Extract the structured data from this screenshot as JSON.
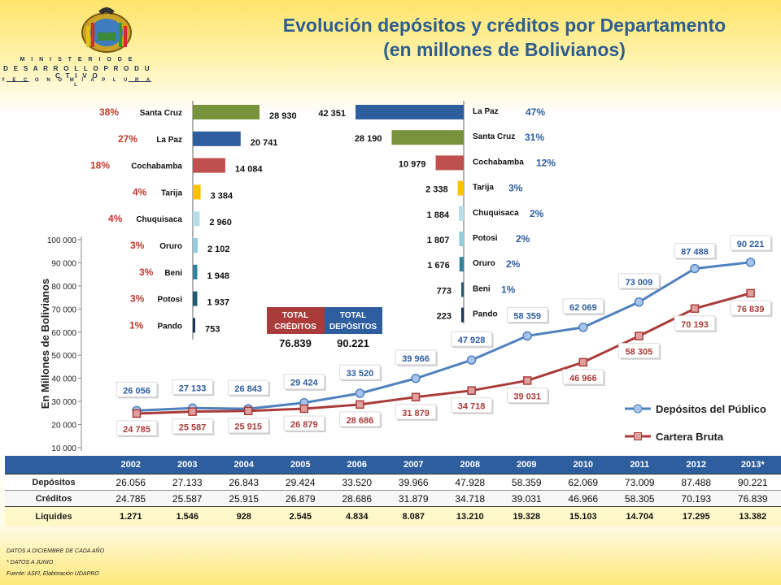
{
  "page": {
    "title_line1": "Evolución depósitos y créditos por Departamento",
    "title_line2": "(en millones de Bolivianos)",
    "ministry_line1": "M I N I S T E R I O  D E",
    "ministry_line2": "D E S A R R O L L O   P R O D U C T I V O",
    "ministry_line3": "Y  E C O N O M Í A  P L U R A L",
    "notes": [
      "DATOS A DICIEMBRE DE CADA AÑO",
      "* DATOS A JUNIO",
      "Fuente: ASFI, Elaboración UDAPRO"
    ]
  },
  "chart_data": [
    {
      "type": "line",
      "ylabel": "En Millones de Bolivianos",
      "ylim": [
        10000,
        100000
      ],
      "y_ticks": [
        "10 000",
        "20 000",
        "30 000",
        "40 000",
        "50 000",
        "60 000",
        "70 000",
        "80 000",
        "90 000",
        "100 000"
      ],
      "x": [
        "2002",
        "2003",
        "2004",
        "2005",
        "2006",
        "2007",
        "2008",
        "2009",
        "2010",
        "2011",
        "2012",
        "2013*"
      ],
      "series": [
        {
          "name": "Depósitos del Público",
          "color": "#4f81bd",
          "values": [
            26056,
            27133,
            26843,
            29424,
            33520,
            39966,
            47928,
            58359,
            62069,
            73009,
            87488,
            90221
          ],
          "labels": [
            "26 056",
            "27 133",
            "26 843",
            "29 424",
            "33 520",
            "39 966",
            "47 928",
            "58 359",
            "62 069",
            "73 009",
            "87 488",
            "90 221"
          ]
        },
        {
          "name": "Cartera Bruta",
          "color": "#a93c3a",
          "values": [
            24785,
            25587,
            25915,
            26879,
            28686,
            31879,
            34718,
            39031,
            46966,
            58305,
            70193,
            76839
          ],
          "labels": [
            "24 785",
            "25 587",
            "25 915",
            "26 879",
            "28 686",
            "31 879",
            "34 718",
            "39 031",
            "46 966",
            "58 305",
            "70 193",
            "76 839"
          ]
        }
      ],
      "grid": false,
      "legend": "bottom-right"
    },
    {
      "type": "bar",
      "orientation": "horizontal",
      "subject": "créditos",
      "categories": [
        "Santa Cruz",
        "La Paz",
        "Cochabamba",
        "Tarija",
        "Chuquisaca",
        "Oruro",
        "Beni",
        "Potosi",
        "Pando"
      ],
      "values": [
        28930,
        20741,
        14084,
        3384,
        2960,
        2102,
        1948,
        1937,
        753
      ],
      "labels": [
        "28 930",
        "20 741",
        "14 084",
        "3 384",
        "2 960",
        "2 102",
        "1 948",
        "1 937",
        "753"
      ],
      "percents": [
        "38%",
        "27%",
        "18%",
        "4%",
        "4%",
        "3%",
        "3%",
        "3%",
        "1%"
      ],
      "colors": [
        "#77933c",
        "#2e5e9e",
        "#c0504d",
        "#ffc000",
        "#b7dee8",
        "#93cddd",
        "#31849b",
        "#1f5a6e",
        "#17375e"
      ]
    },
    {
      "type": "bar",
      "orientation": "horizontal",
      "subject": "depósitos",
      "categories": [
        "La Paz",
        "Santa Cruz",
        "Cochabamba",
        "Tarija",
        "Chuquisaca",
        "Potosi",
        "Oruro",
        "Beni",
        "Pando"
      ],
      "values": [
        42351,
        28190,
        10979,
        2338,
        1884,
        1807,
        1676,
        773,
        223
      ],
      "labels": [
        "42 351",
        "28 190",
        "10 979",
        "2 338",
        "1 884",
        "1 807",
        "1 676",
        "773",
        "223"
      ],
      "percents": [
        "47%",
        "31%",
        "12%",
        "3%",
        "2%",
        "2%",
        "2%",
        "1%",
        ""
      ],
      "colors": [
        "#2e5e9e",
        "#77933c",
        "#c0504d",
        "#ffc000",
        "#b7dee8",
        "#93cddd",
        "#31849b",
        "#1f5a6e",
        "#17375e"
      ]
    }
  ],
  "totals": {
    "creditos_label_line1": "TOTAL",
    "creditos_label_line2": "CRÉDITOS",
    "depositos_label_line1": "TOTAL",
    "depositos_label_line2": "DEPÓSITOS",
    "creditos_value": "76.839",
    "depositos_value": "90.221"
  },
  "table": {
    "columns": [
      "2002",
      "2003",
      "2004",
      "2005",
      "2006",
      "2007",
      "2008",
      "2009",
      "2010",
      "2011",
      "2012",
      "2013*"
    ],
    "rows": [
      {
        "label": "Depósitos",
        "values": [
          "26.056",
          "27.133",
          "26.843",
          "29.424",
          "33.520",
          "39.966",
          "47.928",
          "58.359",
          "62.069",
          "73.009",
          "87.488",
          "90.221"
        ]
      },
      {
        "label": "Créditos",
        "values": [
          "24.785",
          "25.587",
          "25.915",
          "26.879",
          "28.686",
          "31.879",
          "34.718",
          "39.031",
          "46.966",
          "58.305",
          "70.193",
          "76.839"
        ]
      },
      {
        "label": "Liquides",
        "values": [
          "1.271",
          "1.546",
          "928",
          "2.545",
          "4.834",
          "8.087",
          "13.210",
          "19.328",
          "15.103",
          "14.704",
          "17.295",
          "13.382"
        ]
      }
    ]
  }
}
